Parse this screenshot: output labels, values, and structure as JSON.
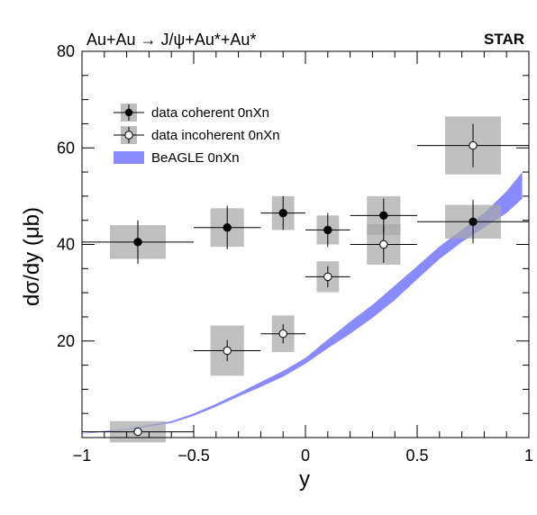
{
  "header": {
    "process": "Au+Au → J/ψ+Au*+Au*",
    "experiment": "STAR"
  },
  "chart_data": {
    "type": "scatter",
    "title": "Au+Au → J/ψ+Au*+Au*",
    "xlabel": "y",
    "ylabel": "dσ/dy (μb)",
    "xlim": [
      -1,
      1
    ],
    "ylim": [
      0,
      80
    ],
    "xticks": [
      "−1",
      "−0.5",
      "0",
      "0.5",
      "1"
    ],
    "xtick_values": [
      -1,
      -0.5,
      0,
      0.5,
      1
    ],
    "yticks": [
      "20",
      "40",
      "60",
      "80"
    ],
    "ytick_values": [
      20,
      40,
      60,
      80
    ],
    "grid": false,
    "legend_position": "top-left",
    "series": [
      {
        "name": "data coherent 0nXn",
        "marker": "filled-circle",
        "color": "#000000",
        "points": [
          {
            "x": -0.75,
            "y": 40.5,
            "xerr": 0.25,
            "yerr": 4.5,
            "sys_x": 0.125,
            "sys_y": 3.5
          },
          {
            "x": -0.35,
            "y": 43.5,
            "xerr": 0.15,
            "yerr": 4.5,
            "sys_x": 0.075,
            "sys_y": 4.0
          },
          {
            "x": -0.1,
            "y": 46.5,
            "xerr": 0.1,
            "yerr": 3.5,
            "sys_x": 0.05,
            "sys_y": 3.5
          },
          {
            "x": 0.1,
            "y": 43.0,
            "xerr": 0.1,
            "yerr": 3.5,
            "sys_x": 0.05,
            "sys_y": 3.0
          },
          {
            "x": 0.35,
            "y": 46.0,
            "xerr": 0.15,
            "yerr": 3.5,
            "sys_x": 0.075,
            "sys_y": 4.0
          },
          {
            "x": 0.75,
            "y": 44.7,
            "xerr": 0.25,
            "yerr": 4.5,
            "sys_x": 0.125,
            "sys_y": 3.5
          }
        ]
      },
      {
        "name": "data incoherent 0nXn",
        "marker": "open-circle",
        "color": "#000000",
        "points": [
          {
            "x": -0.75,
            "y": 1.2,
            "xerr": 0.25,
            "yerr": 0.6,
            "sys_x": 0.125,
            "sys_y": 2.2
          },
          {
            "x": -0.35,
            "y": 18.0,
            "xerr": 0.15,
            "yerr": 2.2,
            "sys_x": 0.075,
            "sys_y": 5.2
          },
          {
            "x": -0.1,
            "y": 21.5,
            "xerr": 0.1,
            "yerr": 2.0,
            "sys_x": 0.05,
            "sys_y": 3.8
          },
          {
            "x": 0.1,
            "y": 33.3,
            "xerr": 0.1,
            "yerr": 2.2,
            "sys_x": 0.05,
            "sys_y": 3.2
          },
          {
            "x": 0.35,
            "y": 40.0,
            "xerr": 0.15,
            "yerr": 3.8,
            "sys_x": 0.075,
            "sys_y": 4.2
          },
          {
            "x": 0.75,
            "y": 60.5,
            "xerr": 0.25,
            "yerr": 4.5,
            "sys_x": 0.125,
            "sys_y": 6.0
          }
        ]
      },
      {
        "name": "BeAGLE 0nXn",
        "type": "band",
        "color": "#8a8aff",
        "x": [
          -1.0,
          -0.8,
          -0.6,
          -0.5,
          -0.4,
          -0.3,
          -0.2,
          -0.1,
          0.0,
          0.1,
          0.2,
          0.3,
          0.4,
          0.5,
          0.6,
          0.7,
          0.8,
          0.9,
          0.97
        ],
        "lower": [
          0.8,
          1.6,
          3.0,
          4.5,
          6.4,
          8.5,
          10.5,
          12.6,
          15.3,
          18.5,
          21.5,
          24.8,
          28.5,
          32.8,
          37.0,
          40.5,
          43.5,
          46.5,
          49.5
        ],
        "upper": [
          0.9,
          1.8,
          3.4,
          5.0,
          7.0,
          9.2,
          11.5,
          13.8,
          16.5,
          20.3,
          24.0,
          27.5,
          31.5,
          35.5,
          39.6,
          43.0,
          46.5,
          51.0,
          55.0
        ]
      }
    ]
  }
}
